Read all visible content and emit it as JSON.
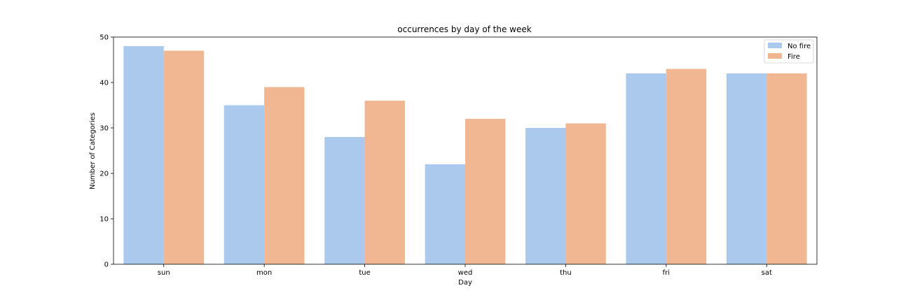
{
  "chart_data": {
    "type": "bar",
    "title": "occurrences by day of the week",
    "xlabel": "Day",
    "ylabel": "Number of Categories",
    "categories": [
      "sun",
      "mon",
      "tue",
      "wed",
      "thu",
      "fri",
      "sat"
    ],
    "series": [
      {
        "name": "No fire",
        "color": "#abc9ed",
        "values": [
          48,
          35,
          28,
          22,
          30,
          42,
          42
        ]
      },
      {
        "name": "Fire",
        "color": "#f0b792",
        "values": [
          47,
          39,
          36,
          32,
          31,
          43,
          42
        ]
      }
    ],
    "ylim": [
      0,
      50
    ],
    "yticks": [
      0,
      10,
      20,
      30,
      40,
      50
    ],
    "grid": false,
    "legend_position": "top-right"
  }
}
